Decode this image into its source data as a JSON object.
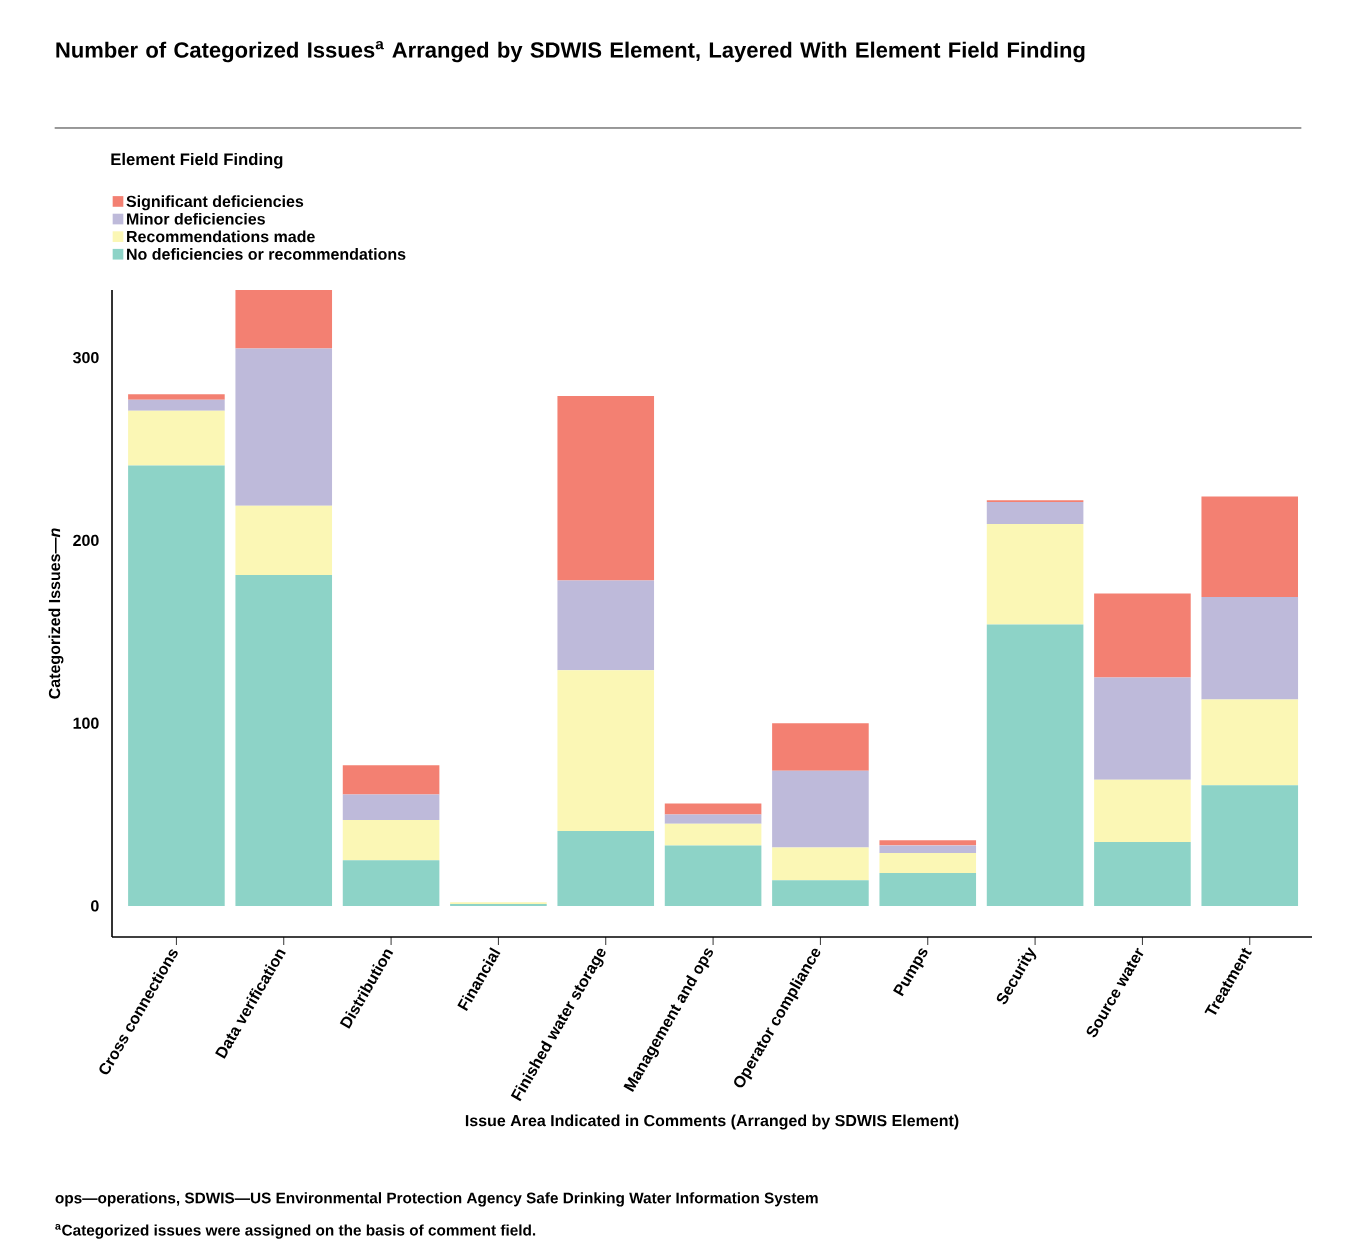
{
  "chart_data": {
    "type": "bar",
    "stacked": true,
    "title": "Number of Categorized Issues$^{a}$ Arranged by SDWIS Element, Layered With Element Field Finding",
    "xlabel": "Issue Area Indicated in Comments (Arranged by SDWIS Element)",
    "ylabel": "Categorized Issues—*n*",
    "legend_title": "Element Field Finding",
    "legend": "top left",
    "categories": [
      "Cross connections",
      "Data verification",
      "Distribution",
      "Financial",
      "Finished water storage",
      "Management and ops",
      "Operator compliance",
      "Pumps",
      "Security",
      "Source water",
      "Treatment"
    ],
    "series": [
      {
        "name": "No deficiencies or recommendations",
        "color": "#8dd3c7",
        "values": [
          241,
          181,
          25,
          1,
          41,
          33,
          14,
          18,
          154,
          35,
          66
        ]
      },
      {
        "name": "Recommendations made",
        "color": "#fbf7b5",
        "values": [
          30,
          38,
          22,
          1,
          88,
          12,
          18,
          11,
          55,
          34,
          47
        ]
      },
      {
        "name": "Minor deficiencies",
        "color": "#bebada",
        "values": [
          6,
          86,
          14,
          0,
          49,
          5,
          42,
          4,
          12,
          56,
          56
        ]
      },
      {
        "name": "Significant deficiencies",
        "color": "#f38072",
        "values": [
          3,
          32,
          16,
          0,
          101,
          6,
          26,
          3,
          1,
          46,
          55
        ]
      }
    ],
    "ylim": [
      -17,
      337
    ],
    "yticks": [
      0,
      100,
      200,
      300
    ],
    "annotations": [
      "ops—operations, SDWIS—US Environmental Protection Agency Safe Drinking Water Information System",
      "$^{a}$Categorized issues were assigned on the basis of comment field."
    ]
  }
}
